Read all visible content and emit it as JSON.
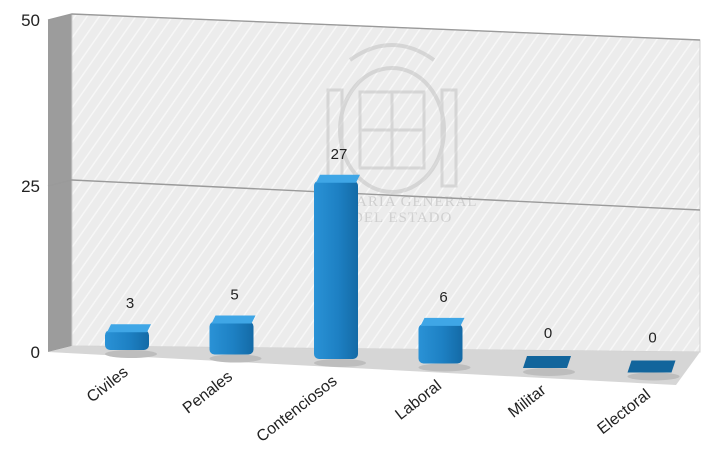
{
  "chart_data": {
    "type": "bar",
    "categories": [
      "Civiles",
      "Penales",
      "Contenciosos",
      "Laboral",
      "Militar",
      "Electoral"
    ],
    "values": [
      3,
      5,
      27,
      6,
      0,
      0
    ],
    "title": "",
    "xlabel": "",
    "ylabel": "",
    "ylim": [
      0,
      50
    ],
    "yticks": [
      0,
      25,
      50
    ],
    "grid": true,
    "legend": "none",
    "colors": {
      "bar_front": "#1f86c9",
      "bar_top": "#3fa6e6",
      "bar_side": "#12659c",
      "wall": "#e6e6e6",
      "floor": "#d2d2d2"
    }
  },
  "watermark": {
    "line1": "ARIA GENERAL",
    "line2": "DEL ESTADO"
  }
}
